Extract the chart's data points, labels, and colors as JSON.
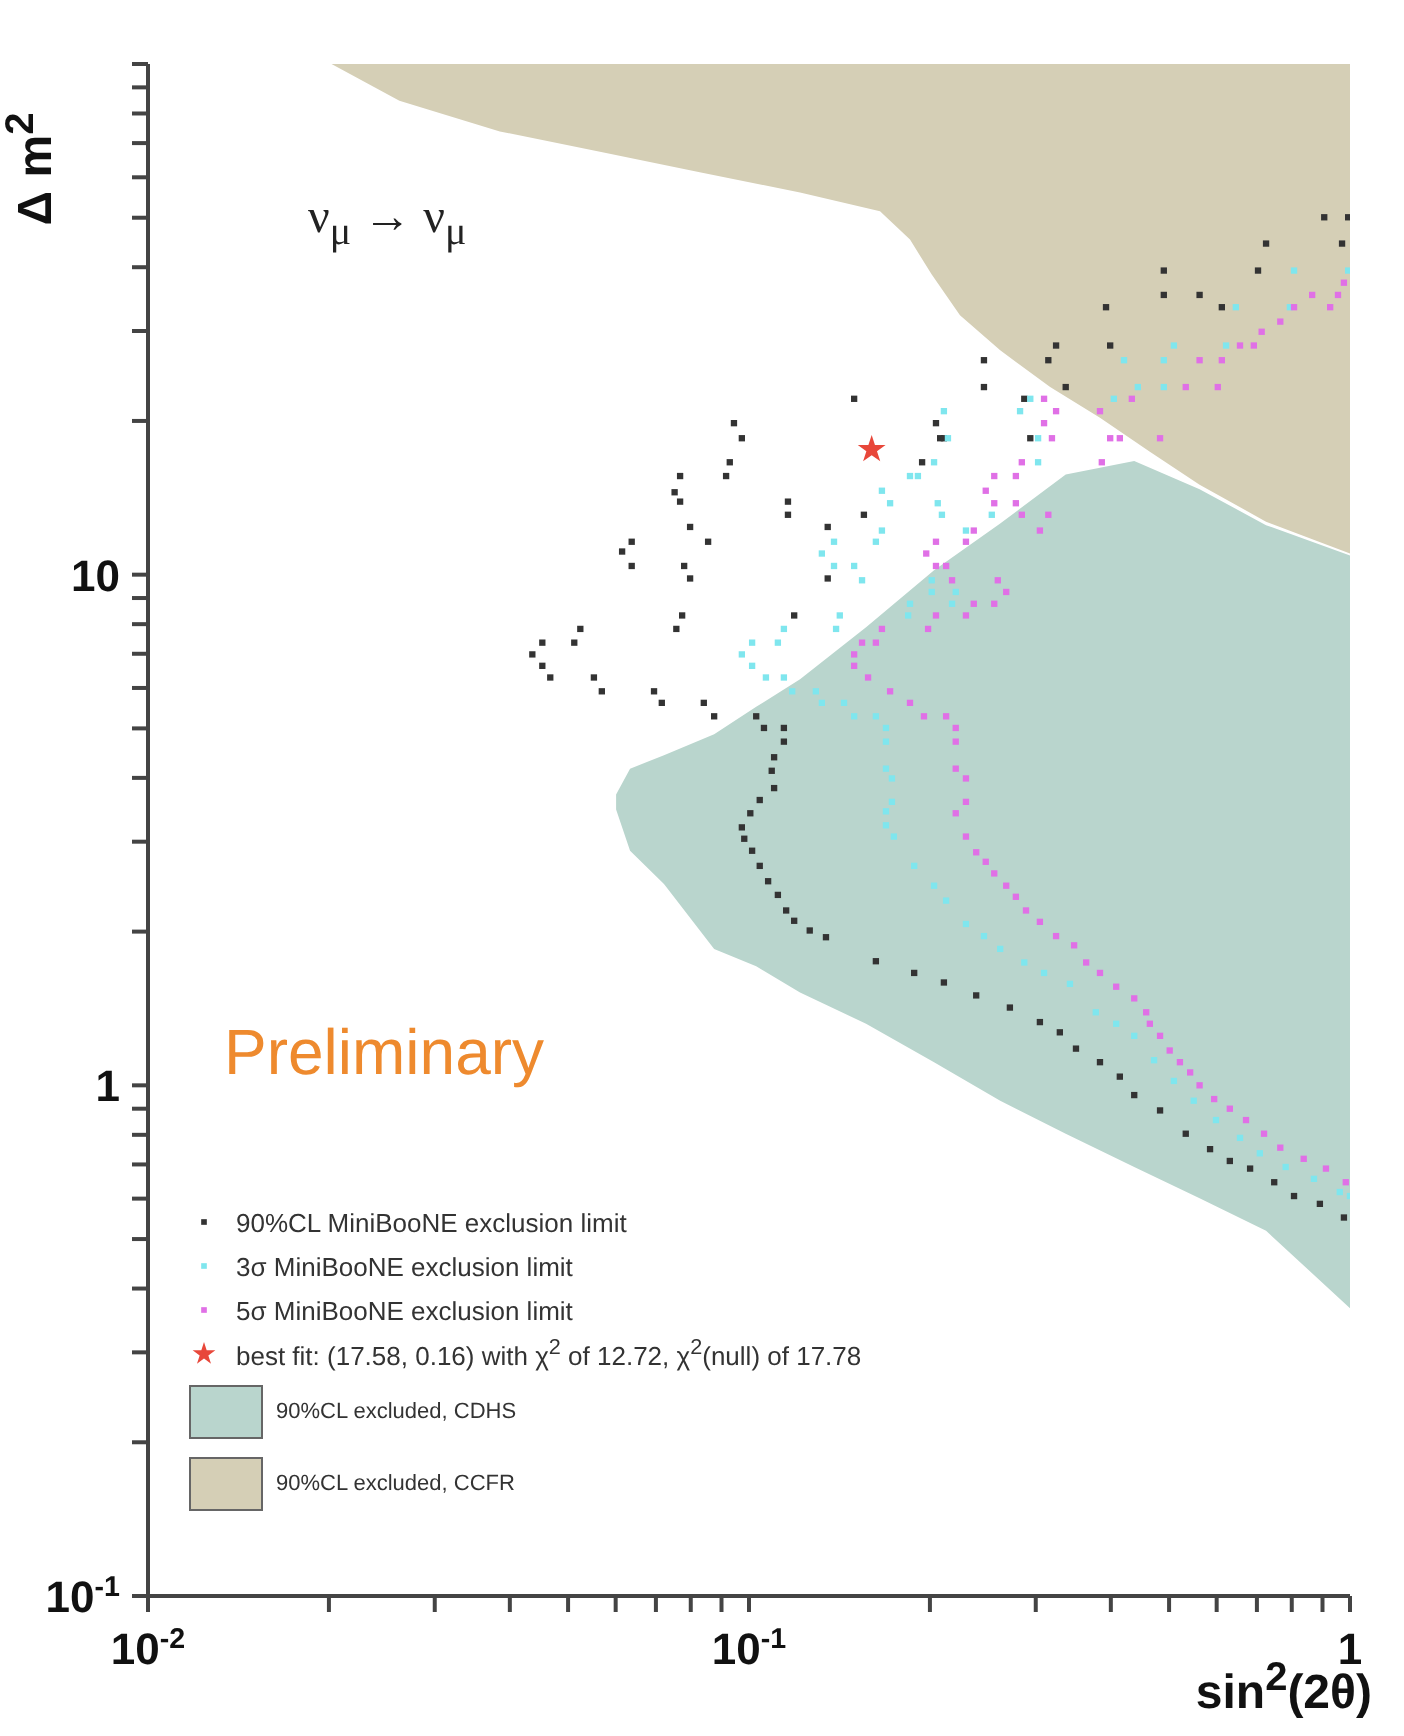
{
  "chart_data": {
    "type": "scatter",
    "xlabel": "sin$^{2}$(2θ)",
    "ylabel": "Δ m$^{2}$",
    "log": "xy",
    "xlim": [
      0.01,
      1
    ],
    "ylim": [
      0.1,
      100
    ],
    "xticks": [
      {
        "value": 0.01,
        "label": "10$^{-2}$"
      },
      {
        "value": 0.02,
        "label": null
      },
      {
        "value": 0.03,
        "label": null
      },
      {
        "value": 0.04,
        "label": null
      },
      {
        "value": 0.05,
        "label": null
      },
      {
        "value": 0.06,
        "label": null
      },
      {
        "value": 0.07,
        "label": null
      },
      {
        "value": 0.08,
        "label": null
      },
      {
        "value": 0.09,
        "label": null
      },
      {
        "value": 0.1,
        "label": "10$^{-1}$"
      },
      {
        "value": 0.2,
        "label": null
      },
      {
        "value": 0.3,
        "label": null
      },
      {
        "value": 0.4,
        "label": null
      },
      {
        "value": 0.5,
        "label": null
      },
      {
        "value": 0.6,
        "label": null
      },
      {
        "value": 0.7,
        "label": null
      },
      {
        "value": 0.8,
        "label": null
      },
      {
        "value": 0.9,
        "label": null
      },
      1
    ],
    "yticks": [
      {
        "value": 0.1,
        "label": "10$^{-1}$"
      },
      {
        "value": 0.2,
        "label": null
      },
      {
        "value": 0.3,
        "label": null
      },
      {
        "value": 0.4,
        "label": null
      },
      {
        "value": 0.5,
        "label": null
      },
      {
        "value": 0.6,
        "label": null
      },
      {
        "value": 0.7,
        "label": null
      },
      {
        "value": 0.8,
        "label": null
      },
      {
        "value": 0.9,
        "label": null
      },
      1,
      {
        "value": 2,
        "label": null
      },
      {
        "value": 3,
        "label": null
      },
      {
        "value": 4,
        "label": null
      },
      {
        "value": 5,
        "label": null
      },
      {
        "value": 6,
        "label": null
      },
      {
        "value": 7,
        "label": null
      },
      {
        "value": 8,
        "label": null
      },
      {
        "value": 9,
        "label": null
      },
      10,
      {
        "value": 20,
        "label": null
      },
      {
        "value": 30,
        "label": null
      },
      {
        "value": 40,
        "label": null
      },
      {
        "value": 50,
        "label": null
      },
      {
        "value": 60,
        "label": null
      },
      {
        "value": 70,
        "label": null
      },
      {
        "value": 80,
        "label": null
      },
      {
        "value": 90,
        "label": null
      },
      {
        "value": 100,
        "label": null
      }
    ],
    "legend": "bottom left",
    "annotations": [
      "ν$_{μ}$ → ν$_{μ}$",
      "Preliminary"
    ],
    "series": [
      {
        "marker": "square",
        "name": "90%CL MiniBooNE exclusion limit",
        "color": "#333333",
        "x": [
          0.906,
          0.993,
          0.725,
          0.97,
          0.49,
          0.703,
          0.49,
          0.562,
          0.3927,
          0.612,
          0.3243,
          0.399,
          0.246,
          0.3148,
          0.246,
          0.3365,
          0.1496,
          0.2871,
          0.0944,
          0.2047,
          0.0973,
          0.208,
          0.211,
          0.2938,
          0.0929,
          0.1941,
          0.0768,
          0.0916,
          0.0752,
          0.0768,
          0.1161,
          0.1161,
          0.1553,
          0.0798,
          0.1352,
          0.0638,
          0.0855,
          0.0615,
          0.0638,
          0.078,
          0.0798,
          0.1352,
          0.0774,
          0.1189,
          0.0524,
          0.0757,
          0.0453,
          0.0512,
          0.0436,
          0.0453,
          0.0467,
          0.0552,
          0.0569,
          0.0695,
          0.0716,
          0.0841,
          0.0875,
          0.1028,
          0.1059,
          0.1143,
          0.1143,
          0.1101,
          0.1091,
          0.1101,
          0.1042,
          0.1005,
          0.0973,
          0.0982,
          0.1012,
          0.1042,
          0.1076,
          0.1117,
          0.1153,
          0.1189,
          0.1262,
          0.1343,
          0.1626,
          0.1883,
          0.211,
          0.2388,
          0.2717,
          0.3048,
          0.329,
          0.35,
          0.3837,
          0.414,
          0.4375,
          0.483,
          0.533,
          0.585,
          0.631,
          0.682,
          0.748,
          0.807,
          0.891,
          0.977
        ],
        "values": [
          50.1,
          50.1,
          44.5,
          44.5,
          39.4,
          39.4,
          35.3,
          35.3,
          33.4,
          33.4,
          28.1,
          28.1,
          26.3,
          26.3,
          23.3,
          23.3,
          22.1,
          22.1,
          19.8,
          19.8,
          18.5,
          18.5,
          18.5,
          18.5,
          16.6,
          16.6,
          15.6,
          15.6,
          14.5,
          13.9,
          13.9,
          13.1,
          13.1,
          12.4,
          12.4,
          11.6,
          11.6,
          11.1,
          10.4,
          10.4,
          9.83,
          9.83,
          8.32,
          8.32,
          7.83,
          7.83,
          7.36,
          7.36,
          6.98,
          6.63,
          6.29,
          6.29,
          5.91,
          5.91,
          5.61,
          5.61,
          5.28,
          5.28,
          5.01,
          5.01,
          4.71,
          4.39,
          4.13,
          3.82,
          3.62,
          3.41,
          3.2,
          3.04,
          2.88,
          2.69,
          2.51,
          2.36,
          2.2,
          2.1,
          2.01,
          1.95,
          1.75,
          1.66,
          1.59,
          1.5,
          1.42,
          1.33,
          1.27,
          1.18,
          1.11,
          1.04,
          0.957,
          0.893,
          0.804,
          0.75,
          0.711,
          0.687,
          0.646,
          0.607,
          0.586,
          0.551
        ]
      },
      {
        "marker": "square",
        "name": "3σ MiniBooNE exclusion limit",
        "color": "#7fe6ee",
        "x": [
          0.807,
          0.993,
          0.6457,
          0.7943,
          0.5093,
          0.622,
          0.4207,
          0.49,
          0.4436,
          0.49,
          0.2938,
          0.4046,
          0.211,
          0.2825,
          0.2143,
          0.3027,
          0.2032,
          0.3027,
          0.1853,
          0.191,
          0.1664,
          0.1717,
          0.2061,
          0.2094,
          0.2535,
          0.1664,
          0.2296,
          0.1385,
          0.1626,
          0.1322,
          0.1385,
          0.1496,
          0.1542,
          0.2014,
          0.2014,
          0.2208,
          0.1853,
          0.2177,
          0.1416,
          0.184,
          0.1143,
          0.1396,
          0.1012,
          0.1117,
          0.0973,
          0.1012,
          0.1067,
          0.1143,
          0.118,
          0.1292,
          0.1322,
          0.1439,
          0.1496,
          0.1626,
          0.169,
          0.169,
          0.169,
          0.1729,
          0.1729,
          0.169,
          0.169,
          0.1742,
          0.1883,
          0.2032,
          0.2128,
          0.2296,
          0.246,
          0.2618,
          0.2871,
          0.3097,
          0.342,
          0.3776,
          0.4083,
          0.4375,
          0.472,
          0.5093,
          0.5495,
          0.5984,
          0.6561,
          0.7079,
          0.7816,
          0.871,
          0.9616,
          1.0
        ],
        "values": [
          39.4,
          39.4,
          33.4,
          33.4,
          28.1,
          28.1,
          26.3,
          26.3,
          23.3,
          23.3,
          22.1,
          22.1,
          20.9,
          20.9,
          18.5,
          18.5,
          16.6,
          16.6,
          15.6,
          15.6,
          14.6,
          13.8,
          13.8,
          13.1,
          13.1,
          12.2,
          12.2,
          11.6,
          11.6,
          11.0,
          10.4,
          10.4,
          9.75,
          9.75,
          9.25,
          9.25,
          8.77,
          8.77,
          8.32,
          8.32,
          7.83,
          7.83,
          7.36,
          7.36,
          6.98,
          6.63,
          6.29,
          6.29,
          5.91,
          5.91,
          5.61,
          5.61,
          5.28,
          5.28,
          5.01,
          4.71,
          4.17,
          3.99,
          3.59,
          3.44,
          3.23,
          3.07,
          2.69,
          2.46,
          2.3,
          2.07,
          1.96,
          1.85,
          1.74,
          1.66,
          1.58,
          1.39,
          1.32,
          1.25,
          1.12,
          1.02,
          0.933,
          0.855,
          0.789,
          0.736,
          0.692,
          0.656,
          0.618,
          0.607
        ]
      },
      {
        "marker": "square",
        "name": "5σ MiniBooNE exclusion limit",
        "color": "#e070e6",
        "x": [
          0.977,
          0.865,
          0.955,
          0.807,
          0.9268,
          0.7656,
          0.7129,
          0.6561,
          0.6918,
          0.562,
          0.612,
          0.533,
          0.6026,
          0.3097,
          0.4335,
          0.3243,
          0.3837,
          0.3097,
          0.3192,
          0.399,
          0.414,
          0.483,
          0.2844,
          0.3864,
          0.2559,
          0.278,
          0.2477,
          0.2559,
          0.278,
          0.2844,
          0.3148,
          0.2366,
          0.3048,
          0.2047,
          0.2296,
          0.1972,
          0.2047,
          0.2128,
          0.2177,
          0.2594,
          0.2679,
          0.2366,
          0.2559,
          0.2047,
          0.2296,
          0.1664,
          0.1986,
          0.1542,
          0.1626,
          0.1496,
          0.1496,
          0.1578,
          0.1717,
          0.1853,
          0.1955,
          0.2128,
          0.2208,
          0.2208,
          0.2208,
          0.2296,
          0.2296,
          0.2208,
          0.2296,
          0.2388,
          0.2477,
          0.2559,
          0.2679,
          0.278,
          0.289,
          0.3048,
          0.3243,
          0.3475,
          0.3639,
          0.3837,
          0.4083,
          0.4375,
          0.458,
          0.4645,
          0.483,
          0.5012,
          0.5212,
          0.542,
          0.562,
          0.5943,
          0.631,
          0.6714,
          0.7194,
          0.7656,
          0.8375,
          0.912,
          0.984
        ],
        "values": [
          37.3,
          35.3,
          35.3,
          33.4,
          33.4,
          31.3,
          29.9,
          28.1,
          28.1,
          26.3,
          26.3,
          23.3,
          23.3,
          22.1,
          22.1,
          20.9,
          20.9,
          19.8,
          18.5,
          18.5,
          18.5,
          18.5,
          16.6,
          16.6,
          15.6,
          15.6,
          14.6,
          13.8,
          13.8,
          13.1,
          13.1,
          12.2,
          12.2,
          11.6,
          11.6,
          11.0,
          10.4,
          10.4,
          9.75,
          9.75,
          9.25,
          8.77,
          8.77,
          8.32,
          8.32,
          7.83,
          7.83,
          7.36,
          7.36,
          6.98,
          6.63,
          6.29,
          5.91,
          5.61,
          5.28,
          5.28,
          5.01,
          4.71,
          4.17,
          3.99,
          3.59,
          3.41,
          3.07,
          2.86,
          2.74,
          2.6,
          2.46,
          2.34,
          2.2,
          2.09,
          1.96,
          1.88,
          1.74,
          1.66,
          1.56,
          1.48,
          1.39,
          1.32,
          1.25,
          1.17,
          1.11,
          1.06,
          1.0,
          0.94,
          0.9,
          0.855,
          0.804,
          0.755,
          0.718,
          0.687,
          0.646
        ]
      },
      {
        "marker": "star",
        "name": "best fit: (17.58, 0.16) with χ$^{2}$ of  12.72, χ$^{2}$(null) of 17.78",
        "color": "#e8473a",
        "x": [
          0.16
        ],
        "values": [
          17.58
        ]
      },
      {
        "type": "area",
        "name": "90%CL excluded, CDHS",
        "color": "#b9d5cd",
        "x": [
          0.0601,
          0.0634,
          0.0722,
          0.0875,
          0.1028,
          0.1216,
          0.1566,
          0.2032,
          0.2618,
          0.3365,
          0.4375,
          0.562,
          0.725,
          1.0,
          1.0,
          0.725,
          0.562,
          0.4375,
          0.3365,
          0.2618,
          0.2032,
          0.1566,
          0.1216,
          0.1028,
          0.0875,
          0.0722,
          0.0634,
          0.0601
        ],
        "values": [
          3.71,
          4.17,
          4.43,
          4.87,
          5.51,
          6.24,
          7.89,
          10.2,
          12.6,
          15.7,
          16.7,
          14.7,
          12.5,
          10.9,
          0.366,
          0.519,
          0.601,
          0.692,
          0.804,
          0.933,
          1.11,
          1.32,
          1.52,
          1.71,
          1.85,
          2.48,
          2.88,
          3.47
        ]
      },
      {
        "type": "area",
        "name": "90%CL excluded, CCFR",
        "color": "#d5cfb6",
        "x": [
          0.0202,
          0.0262,
          0.0385,
          0.0565,
          0.0828,
          0.1216,
          0.1652,
          0.1853,
          0.2014,
          0.2244,
          0.2618,
          0.317,
          0.3837,
          0.4645,
          0.562,
          0.725,
          1.0,
          1.0
        ],
        "values": [
          100,
          84.7,
          73.8,
          67.3,
          61.4,
          56.0,
          51.5,
          45.3,
          38.7,
          32.2,
          27.5,
          23.3,
          20.3,
          17.4,
          15.0,
          12.7,
          11.0,
          100
        ]
      }
    ]
  }
}
